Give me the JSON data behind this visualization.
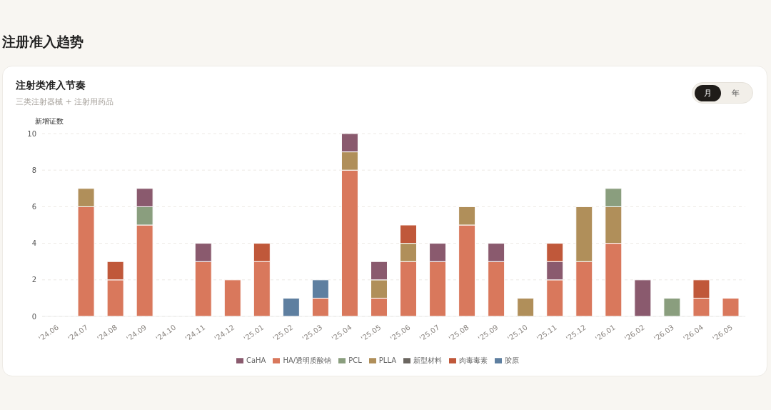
{
  "chart_data": {
    "type": "bar",
    "title": "注册准入趋势",
    "subtitle": "注射类准入节奏",
    "annotations": [
      "三类注射器械 + 注射用药品",
      "月",
      "年"
    ],
    "ylabel": "新增证数",
    "categories": [
      "'24.06",
      "'24.07",
      "'24.08",
      "'24.09",
      "'24.10",
      "'24.11",
      "'24.12",
      "'25.01",
      "'25.02",
      "'25.03",
      "'25.04",
      "'25.05",
      "'25.06",
      "'25.07",
      "'25.08",
      "'25.09",
      "'25.10",
      "'25.11",
      "'25.12",
      "'26.01",
      "'26.02",
      "'26.03",
      "'26.04",
      "'26.05"
    ],
    "stacked": true,
    "series": [
      {
        "name": "HA/透明质酸钠",
        "color": "#d9785c",
        "values": [
          0,
          6,
          2,
          5,
          0,
          3,
          2,
          3,
          0,
          1,
          8,
          1,
          3,
          3,
          5,
          3,
          0,
          2,
          3,
          4,
          0,
          0,
          1,
          1
        ]
      },
      {
        "name": "胶原",
        "color": "#5e7fa0",
        "values": [
          0,
          0,
          0,
          0,
          0,
          0,
          0,
          0,
          1,
          1,
          0,
          0,
          0,
          0,
          0,
          0,
          0,
          0,
          0,
          0,
          0,
          0,
          0,
          0
        ]
      },
      {
        "name": "PLLA",
        "color": "#b08f5a",
        "values": [
          0,
          1,
          0,
          0,
          0,
          0,
          0,
          0,
          0,
          0,
          1,
          1,
          1,
          0,
          1,
          0,
          1,
          0,
          3,
          2,
          0,
          0,
          0,
          0
        ]
      },
      {
        "name": "PCL",
        "color": "#8a9e7e",
        "values": [
          0,
          0,
          0,
          1,
          0,
          0,
          0,
          0,
          0,
          0,
          0,
          0,
          0,
          0,
          0,
          0,
          0,
          0,
          0,
          1,
          0,
          1,
          0,
          0
        ]
      },
      {
        "name": "CaHA",
        "color": "#8a5a6e",
        "values": [
          0,
          0,
          0,
          1,
          0,
          1,
          0,
          0,
          0,
          0,
          1,
          1,
          0,
          1,
          0,
          1,
          0,
          1,
          0,
          0,
          2,
          0,
          0,
          0
        ]
      },
      {
        "name": "肉毒毒素",
        "color": "#c0583a",
        "values": [
          0,
          0,
          1,
          0,
          0,
          0,
          0,
          1,
          0,
          0,
          0,
          0,
          1,
          0,
          0,
          0,
          0,
          1,
          0,
          0,
          0,
          0,
          1,
          0
        ]
      },
      {
        "name": "新型材料",
        "color": "#6b6660",
        "values": [
          0,
          0,
          0,
          0,
          0,
          0,
          0,
          0,
          0,
          0,
          0,
          0,
          0,
          0,
          0,
          0,
          0,
          0,
          0,
          0,
          0,
          0,
          0,
          0
        ]
      }
    ],
    "ylim": [
      0,
      10
    ],
    "yticks": [
      0,
      2,
      4,
      6,
      8,
      10
    ],
    "grid": "y",
    "legend": "bottom"
  }
}
